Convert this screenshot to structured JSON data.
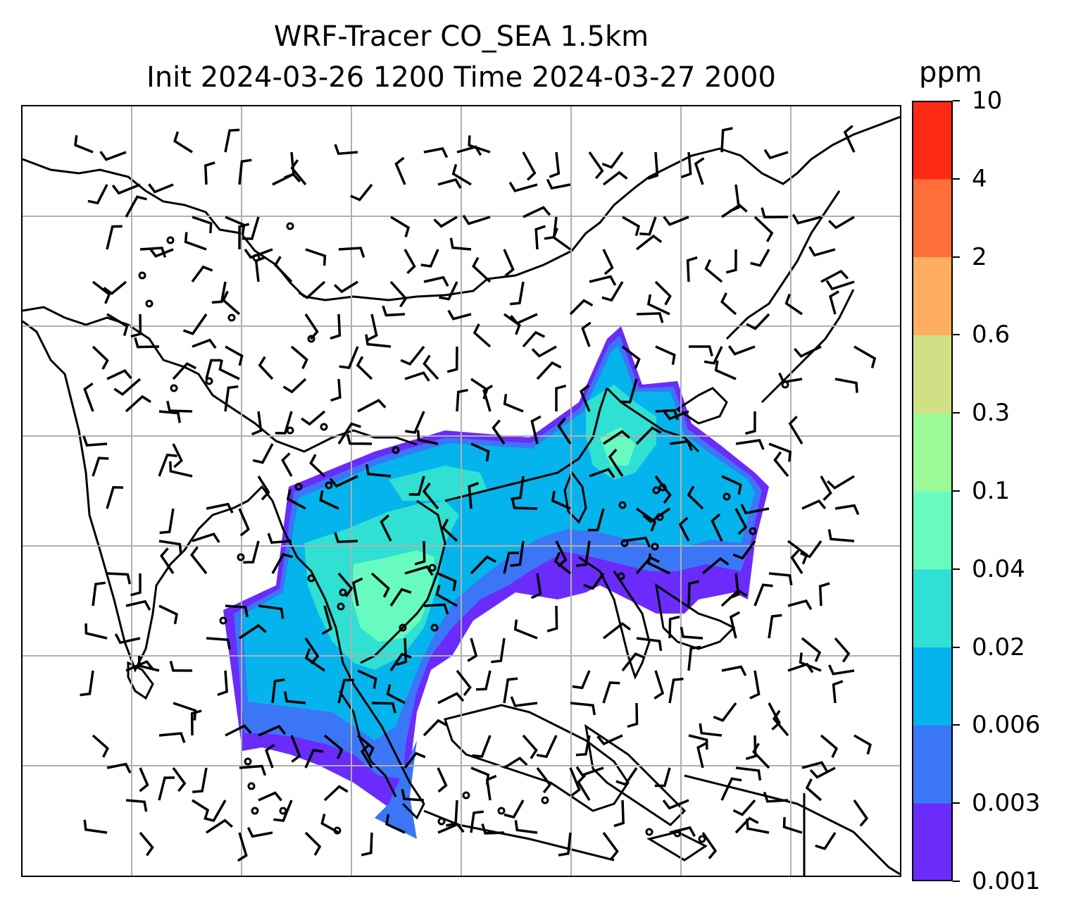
{
  "title": {
    "line1": "WRF-Tracer CO_SEA 1.5km",
    "line2": "Init 2024-03-26 1200 Time 2024-03-27 2000"
  },
  "colorbar": {
    "unit": "ppm",
    "ticks": [
      "0.001",
      "0.003",
      "0.006",
      "0.02",
      "0.04",
      "0.1",
      "0.3",
      "0.6",
      "2",
      "4",
      "10"
    ],
    "colors": [
      "#6a2bfb",
      "#3b76f6",
      "#05b4ec",
      "#2fe0d3",
      "#68fbc0",
      "#9bf998",
      "#cfe085",
      "#fdae5f",
      "#fd6e38",
      "#fc2a15"
    ]
  },
  "map": {
    "layers": [
      "coastlines",
      "country-borders",
      "gridlines",
      "tracer-concentration-shading",
      "wind-barbs",
      "calm-wind-circles"
    ],
    "gridline_color": "#b0b0b0"
  }
}
